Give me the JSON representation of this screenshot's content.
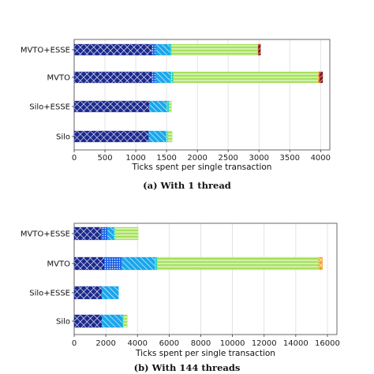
{
  "colors": {
    "seg0": "#1c2a8e",
    "seg1": "#1f63e6",
    "seg2": "#1aa7ec",
    "seg3": "#2ad4c8",
    "seg4": "#a6e15a",
    "seg5": "#f3a531",
    "seg6": "#8b1a1a"
  },
  "chart_data": [
    {
      "type": "bar",
      "orientation": "horizontal",
      "stacked": true,
      "caption": "(a) With 1 thread",
      "xlabel": "Ticks spent per single transaction",
      "xlim": [
        0,
        4150
      ],
      "xticks": [
        0,
        500,
        1000,
        1500,
        2000,
        2500,
        3000,
        3500,
        4000
      ],
      "grid": true,
      "categories": [
        "MVTO+ESSE",
        "MVTO",
        "Silo+ESSE",
        "Silo"
      ],
      "segments": [
        [
          1260,
          70,
          230,
          20,
          1400,
          10,
          35
        ],
        [
          1260,
          70,
          230,
          50,
          2350,
          20,
          55
        ],
        [
          1220,
          0,
          280,
          40,
          40,
          0,
          0
        ],
        [
          1210,
          0,
          280,
          30,
          70,
          0,
          0
        ]
      ]
    },
    {
      "type": "bar",
      "orientation": "horizontal",
      "stacked": true,
      "caption": "(b) With 144 threads",
      "xlabel": "Ticks spent per single transaction",
      "xlim": [
        0,
        16600
      ],
      "xticks": [
        0,
        2000,
        4000,
        6000,
        8000,
        10000,
        12000,
        14000,
        16000
      ],
      "grid": true,
      "categories": [
        "MVTO+ESSE",
        "MVTO",
        "Silo+ESSE",
        "Silo"
      ],
      "segments": [
        [
          1700,
          400,
          400,
          100,
          1450,
          0,
          0
        ],
        [
          1900,
          1100,
          2100,
          150,
          10200,
          250,
          0
        ],
        [
          1750,
          0,
          1050,
          0,
          0,
          0,
          0
        ],
        [
          1750,
          0,
          1300,
          60,
          250,
          0,
          0
        ]
      ]
    }
  ]
}
